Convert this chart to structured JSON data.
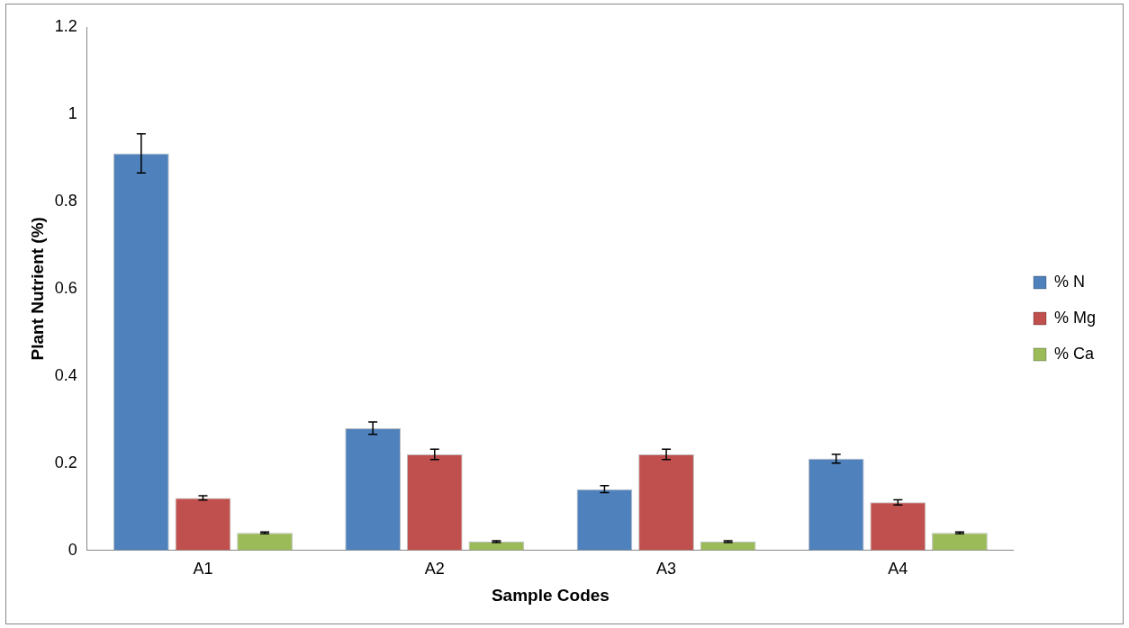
{
  "chart_data": {
    "type": "bar",
    "xlabel": "Sample Codes",
    "ylabel": "Plant Nutrient (%)",
    "categories": [
      "A1",
      "A2",
      "A3",
      "A4"
    ],
    "series": [
      {
        "name": "% N",
        "color": "#4f81bd",
        "values": [
          0.91,
          0.28,
          0.14,
          0.21
        ],
        "errors": [
          0.045,
          0.014,
          0.008,
          0.01
        ]
      },
      {
        "name": "% Mg",
        "color": "#c0504d",
        "values": [
          0.12,
          0.22,
          0.22,
          0.11
        ],
        "errors": [
          0.005,
          0.012,
          0.012,
          0.006
        ]
      },
      {
        "name": "% Ca",
        "color": "#9bbb59",
        "values": [
          0.04,
          0.02,
          0.02,
          0.04
        ],
        "errors": [
          0.002,
          0.002,
          0.002,
          0.002
        ]
      }
    ],
    "ylim": [
      0,
      1.2
    ],
    "yticks": [
      0,
      0.2,
      0.4,
      0.6,
      0.8,
      1,
      1.2
    ],
    "grid": false,
    "legend": "right"
  }
}
